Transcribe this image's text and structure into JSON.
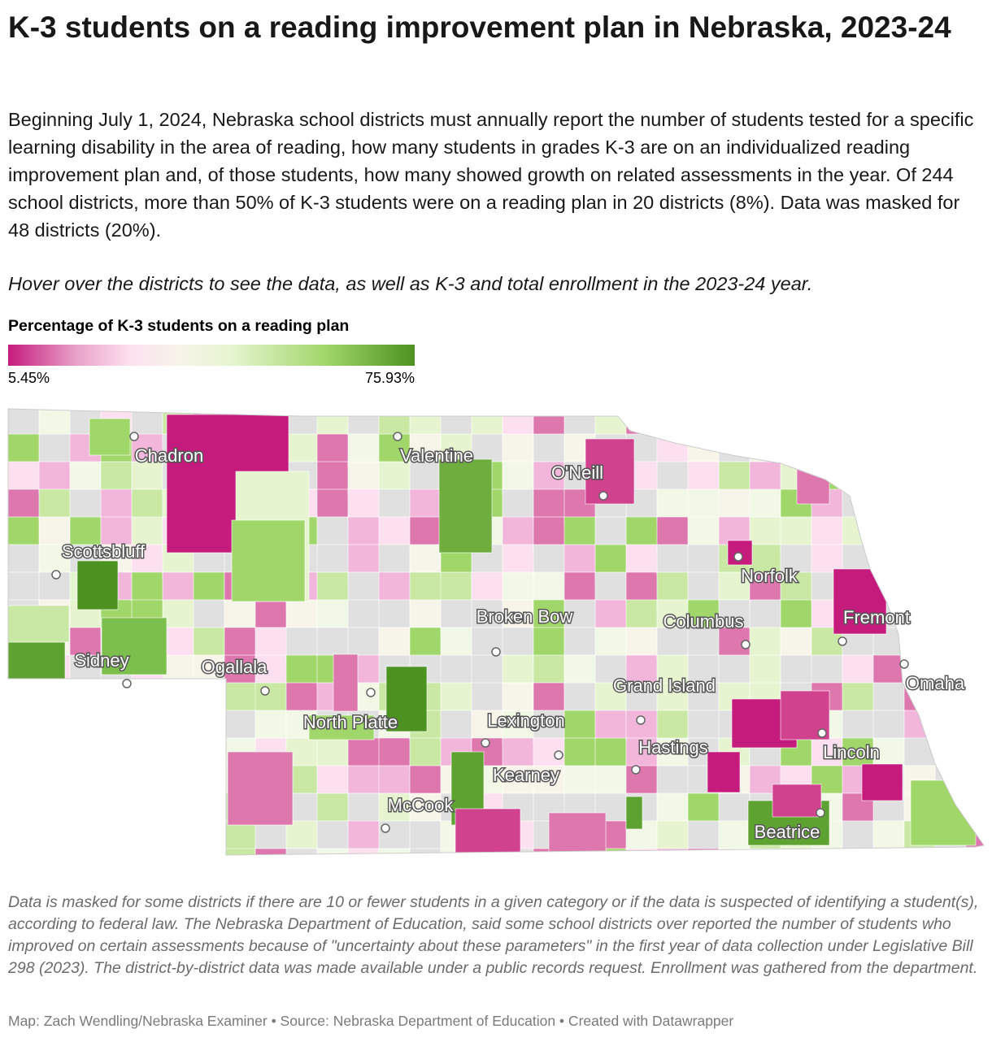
{
  "header": {
    "title": "K-3 students on a reading improvement plan in Nebraska, 2023-24",
    "description": "Beginning July 1, 2024, Nebraska school districts must annually report the number of students tested for a specific learning disability in the area of reading, how many students in grades K-3 are on an individualized reading improvement plan and, of those students, how many showed growth on related assessments in the year. Of 244 school districts, more than 50% of K-3 students were on a reading plan in 20 districts (8%). Data was masked for 48 districts (20%).",
    "note": "Hover over the districts to see the data, as well as K-3 and total enrollment in the 2023-24 year."
  },
  "legend": {
    "title": "Percentage of K-3 students on a reading plan",
    "min": {
      "value": 5.45,
      "label": "5.45%"
    },
    "max": {
      "value": 75.93,
      "label": "75.93%"
    }
  },
  "map": {
    "cities": [
      "Chadron",
      "Valentine",
      "O'Neill",
      "Scottsbluff",
      "Norfolk",
      "Broken Bow",
      "Columbus",
      "Fremont",
      "Omaha",
      "Sidney",
      "Ogallala",
      "North Platte",
      "Grand Island",
      "Lexington",
      "Kearney",
      "Hastings",
      "Lincoln",
      "McCook",
      "Beatrice"
    ]
  },
  "footer": {
    "note": "Data is masked for some districts if there are 10 or fewer students in a given category or if the data is suspected of identifying a student(s), according to federal law. The Nebraska Department of Education, said some school districts over reported the number of students who improved on certain assessments because of \"uncertainty about these parameters\" in the first year of data collection under Legislative Bill 298 (2023). The district-by-district data was made available under a public records request. Enrollment was gathered from the department.",
    "credit": "Map: Zach Wendling/Nebraska Examiner • Source: Nebraska Department of Education • Created with Datawrapper"
  }
}
